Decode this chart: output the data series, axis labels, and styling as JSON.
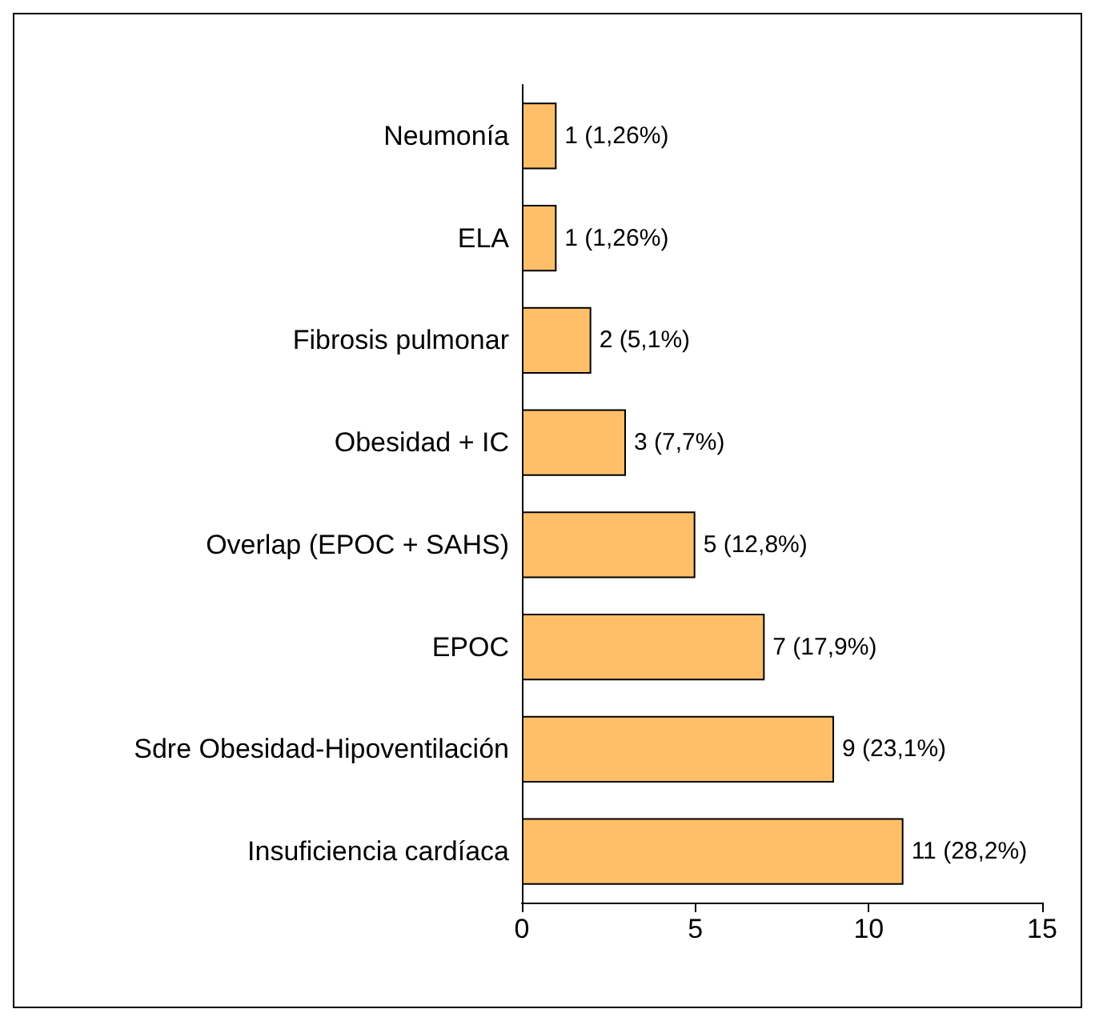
{
  "chart_data": {
    "type": "bar",
    "orientation": "horizontal",
    "categories": [
      "Neumonía",
      "ELA",
      "Fibrosis pulmonar",
      "Obesidad + IC",
      "Overlap (EPOC + SAHS)",
      "EPOC",
      "Sdre Obesidad-Hipoventilación",
      "Insuficiencia cardíaca"
    ],
    "values": [
      1,
      1,
      2,
      3,
      5,
      7,
      9,
      11
    ],
    "value_labels": [
      "1 (1,26%)",
      "1 (1,26%)",
      "2 (5,1%)",
      "3 (7,7%)",
      "5 (12,8%)",
      "7 (17,9%)",
      "9 (23,1%)",
      "11 (28,2%)"
    ],
    "color": "#ffbf69",
    "xlim": [
      0,
      15
    ],
    "xticks": [
      0,
      5,
      10,
      15
    ],
    "grid": false
  }
}
